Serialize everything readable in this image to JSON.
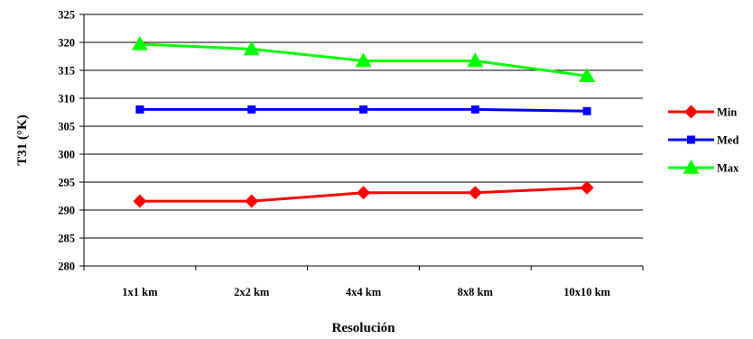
{
  "chart_data": {
    "type": "line",
    "title": "",
    "xlabel": "Resolución",
    "ylabel": "T31 (°K)",
    "categories": [
      "1x1 km",
      "2x2 km",
      "4x4 km",
      "8x8 km",
      "10x10 km"
    ],
    "ylim": [
      280,
      325
    ],
    "ytick_step": 5,
    "grid": "horizontal",
    "legend_position": "right",
    "series": [
      {
        "name": "Min",
        "values": [
          291.6,
          291.6,
          293.1,
          293.1,
          294.0
        ],
        "color": "#ff0000",
        "marker": "diamond"
      },
      {
        "name": "Med",
        "values": [
          308.0,
          308.0,
          308.0,
          308.0,
          307.7
        ],
        "color": "#0000ff",
        "marker": "square"
      },
      {
        "name": "Max",
        "values": [
          319.7,
          318.8,
          316.7,
          316.7,
          314.0
        ],
        "color": "#00ff00",
        "marker": "triangle"
      }
    ]
  }
}
